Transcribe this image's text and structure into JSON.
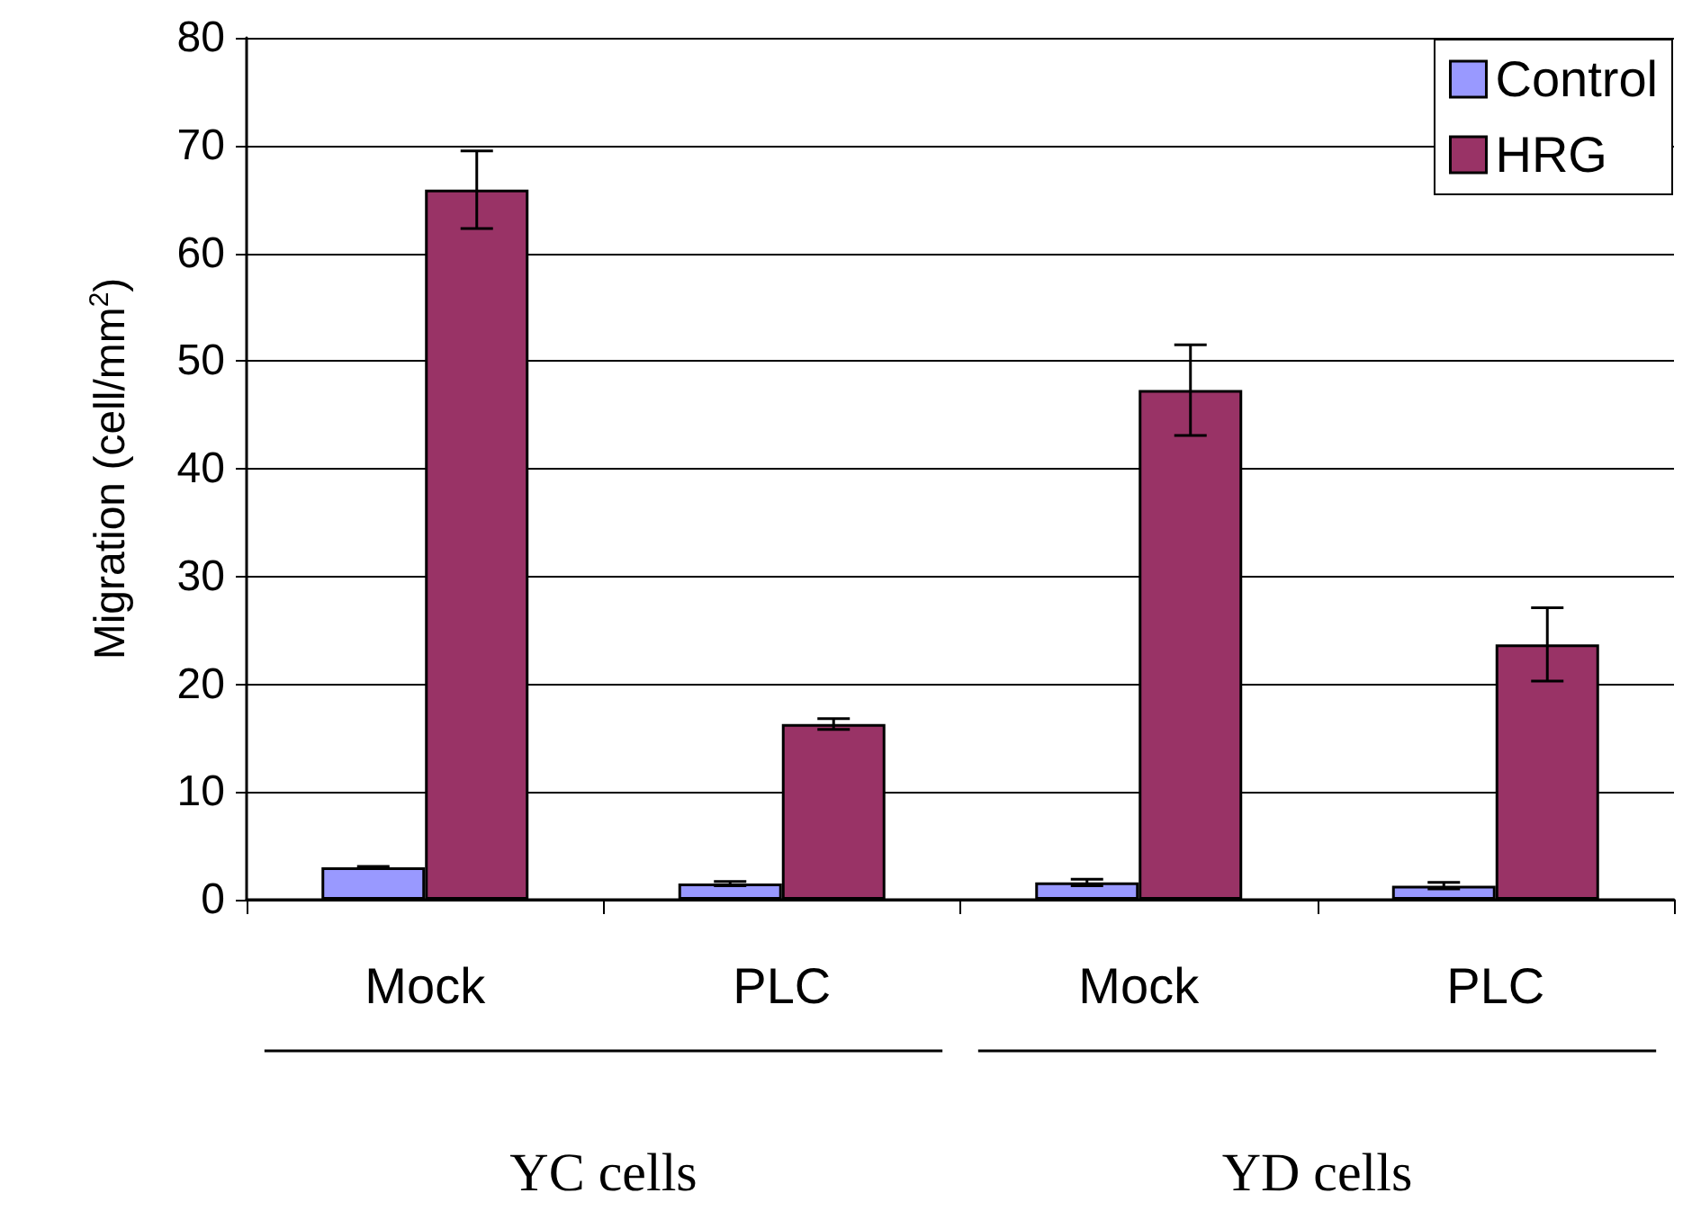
{
  "chart_data": {
    "type": "bar",
    "ylabel": "Migration (cell/mm$^{2}$)",
    "categories": [
      "Mock",
      "PLC",
      "Mock",
      "PLC"
    ],
    "series": [
      {
        "name": "Control",
        "color": "#9999ff",
        "values": [
          3,
          1.5,
          1.6,
          1.3
        ],
        "errors": [
          0.1,
          0.2,
          0.3,
          0.3
        ]
      },
      {
        "name": "HRG",
        "color": "#993366",
        "values": [
          65.9,
          16.3,
          47.3,
          23.7
        ],
        "errors": [
          3.6,
          0.5,
          4.2,
          3.4
        ]
      }
    ],
    "ylim": [
      0,
      80
    ],
    "yticks": [
      0,
      10,
      20,
      30,
      40,
      50,
      60,
      70,
      80
    ],
    "grid": "y",
    "legend": "top right",
    "annotations": [
      "YC cells",
      "YD cells"
    ]
  }
}
